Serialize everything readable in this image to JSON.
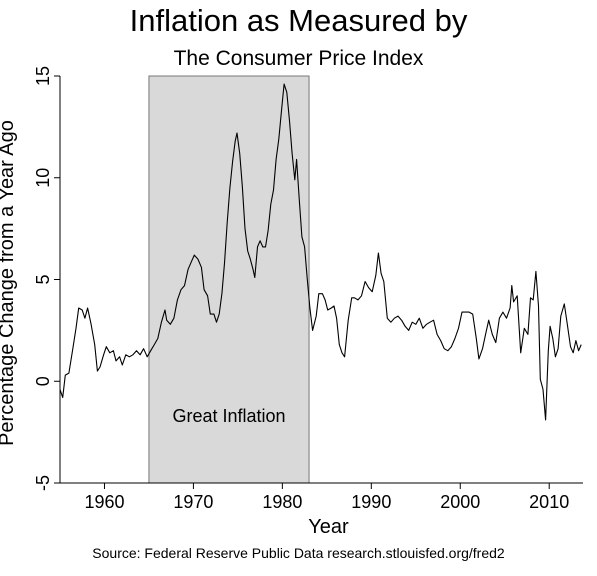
{
  "chart_data": {
    "type": "line",
    "title": "Inflation as Measured by",
    "subtitle": "The Consumer Price Index",
    "xlabel": "Year",
    "ylabel": "Percentage Change from a Year Ago",
    "xlim": [
      1955,
      2013.8
    ],
    "ylim": [
      -5,
      15
    ],
    "x_ticks": [
      1960,
      1970,
      1980,
      1990,
      2000,
      2010
    ],
    "y_ticks": [
      -5,
      0,
      5,
      10,
      15
    ],
    "grid": false,
    "shaded_regions": [
      {
        "start": 1965,
        "end": 1983,
        "label": "Great Inflation",
        "color": "#d9d9d9"
      }
    ],
    "series": [
      {
        "line_color": "#000000",
        "points": [
          [
            1955.0,
            -0.4
          ],
          [
            1955.3,
            -0.8
          ],
          [
            1955.6,
            0.3
          ],
          [
            1956.0,
            0.4
          ],
          [
            1956.4,
            1.5
          ],
          [
            1956.8,
            2.6
          ],
          [
            1957.1,
            3.6
          ],
          [
            1957.5,
            3.5
          ],
          [
            1957.8,
            3.1
          ],
          [
            1958.1,
            3.6
          ],
          [
            1958.5,
            2.8
          ],
          [
            1958.9,
            1.8
          ],
          [
            1959.2,
            0.5
          ],
          [
            1959.5,
            0.7
          ],
          [
            1959.9,
            1.3
          ],
          [
            1960.2,
            1.7
          ],
          [
            1960.6,
            1.4
          ],
          [
            1961.0,
            1.5
          ],
          [
            1961.3,
            1.0
          ],
          [
            1961.7,
            1.2
          ],
          [
            1962.0,
            0.8
          ],
          [
            1962.4,
            1.3
          ],
          [
            1962.8,
            1.2
          ],
          [
            1963.2,
            1.3
          ],
          [
            1963.6,
            1.5
          ],
          [
            1964.0,
            1.3
          ],
          [
            1964.4,
            1.6
          ],
          [
            1964.8,
            1.2
          ],
          [
            1965.2,
            1.5
          ],
          [
            1965.6,
            1.8
          ],
          [
            1966.0,
            2.1
          ],
          [
            1966.4,
            2.9
          ],
          [
            1966.8,
            3.5
          ],
          [
            1967.0,
            3.0
          ],
          [
            1967.4,
            2.8
          ],
          [
            1967.8,
            3.1
          ],
          [
            1968.2,
            4.0
          ],
          [
            1968.6,
            4.5
          ],
          [
            1969.0,
            4.7
          ],
          [
            1969.4,
            5.5
          ],
          [
            1969.8,
            5.9
          ],
          [
            1970.1,
            6.2
          ],
          [
            1970.5,
            6.0
          ],
          [
            1970.9,
            5.6
          ],
          [
            1971.2,
            4.5
          ],
          [
            1971.6,
            4.2
          ],
          [
            1971.9,
            3.3
          ],
          [
            1972.3,
            3.3
          ],
          [
            1972.6,
            2.9
          ],
          [
            1972.9,
            3.3
          ],
          [
            1973.2,
            4.3
          ],
          [
            1973.5,
            5.8
          ],
          [
            1973.8,
            7.8
          ],
          [
            1974.1,
            9.5
          ],
          [
            1974.4,
            10.8
          ],
          [
            1974.7,
            11.8
          ],
          [
            1974.9,
            12.2
          ],
          [
            1975.2,
            11.2
          ],
          [
            1975.5,
            9.6
          ],
          [
            1975.8,
            7.5
          ],
          [
            1976.1,
            6.4
          ],
          [
            1976.4,
            6.0
          ],
          [
            1976.7,
            5.5
          ],
          [
            1976.9,
            5.1
          ],
          [
            1977.2,
            6.6
          ],
          [
            1977.5,
            6.9
          ],
          [
            1977.8,
            6.6
          ],
          [
            1978.1,
            6.6
          ],
          [
            1978.4,
            7.4
          ],
          [
            1978.7,
            8.7
          ],
          [
            1979.0,
            9.4
          ],
          [
            1979.3,
            10.9
          ],
          [
            1979.6,
            11.9
          ],
          [
            1979.9,
            13.3
          ],
          [
            1980.2,
            14.6
          ],
          [
            1980.5,
            14.2
          ],
          [
            1980.8,
            12.8
          ],
          [
            1981.1,
            11.2
          ],
          [
            1981.4,
            9.9
          ],
          [
            1981.6,
            10.9
          ],
          [
            1981.9,
            8.9
          ],
          [
            1982.2,
            7.1
          ],
          [
            1982.5,
            6.6
          ],
          [
            1982.8,
            5.0
          ],
          [
            1983.1,
            3.6
          ],
          [
            1983.4,
            2.5
          ],
          [
            1983.8,
            3.2
          ],
          [
            1984.1,
            4.3
          ],
          [
            1984.5,
            4.3
          ],
          [
            1984.8,
            4.0
          ],
          [
            1985.1,
            3.5
          ],
          [
            1985.5,
            3.6
          ],
          [
            1985.8,
            3.7
          ],
          [
            1986.1,
            3.1
          ],
          [
            1986.4,
            1.8
          ],
          [
            1986.7,
            1.4
          ],
          [
            1987.0,
            1.2
          ],
          [
            1987.4,
            3.0
          ],
          [
            1987.8,
            4.1
          ],
          [
            1988.1,
            4.1
          ],
          [
            1988.5,
            4.0
          ],
          [
            1988.9,
            4.2
          ],
          [
            1989.3,
            4.9
          ],
          [
            1989.7,
            4.6
          ],
          [
            1990.1,
            4.4
          ],
          [
            1990.5,
            5.2
          ],
          [
            1990.8,
            6.3
          ],
          [
            1991.1,
            5.3
          ],
          [
            1991.4,
            4.9
          ],
          [
            1991.8,
            3.1
          ],
          [
            1992.2,
            2.9
          ],
          [
            1992.6,
            3.1
          ],
          [
            1993.0,
            3.2
          ],
          [
            1993.4,
            3.0
          ],
          [
            1993.8,
            2.7
          ],
          [
            1994.2,
            2.5
          ],
          [
            1994.6,
            2.9
          ],
          [
            1995.0,
            2.8
          ],
          [
            1995.4,
            3.1
          ],
          [
            1995.8,
            2.6
          ],
          [
            1996.2,
            2.8
          ],
          [
            1996.6,
            2.9
          ],
          [
            1997.0,
            3.0
          ],
          [
            1997.4,
            2.3
          ],
          [
            1997.8,
            2.0
          ],
          [
            1998.2,
            1.6
          ],
          [
            1998.6,
            1.5
          ],
          [
            1999.0,
            1.7
          ],
          [
            1999.4,
            2.1
          ],
          [
            1999.8,
            2.6
          ],
          [
            2000.2,
            3.4
          ],
          [
            2000.6,
            3.4
          ],
          [
            2001.0,
            3.4
          ],
          [
            2001.4,
            3.3
          ],
          [
            2001.8,
            2.1
          ],
          [
            2002.1,
            1.1
          ],
          [
            2002.5,
            1.6
          ],
          [
            2002.9,
            2.4
          ],
          [
            2003.2,
            3.0
          ],
          [
            2003.6,
            2.3
          ],
          [
            2004.0,
            1.9
          ],
          [
            2004.4,
            3.1
          ],
          [
            2004.8,
            3.4
          ],
          [
            2005.2,
            3.1
          ],
          [
            2005.6,
            3.6
          ],
          [
            2005.8,
            4.7
          ],
          [
            2006.0,
            3.9
          ],
          [
            2006.4,
            4.2
          ],
          [
            2006.8,
            1.4
          ],
          [
            2007.2,
            2.6
          ],
          [
            2007.6,
            2.3
          ],
          [
            2007.9,
            4.1
          ],
          [
            2008.2,
            4.0
          ],
          [
            2008.5,
            5.4
          ],
          [
            2008.8,
            3.7
          ],
          [
            2009.0,
            0.1
          ],
          [
            2009.3,
            -0.4
          ],
          [
            2009.6,
            -1.9
          ],
          [
            2009.9,
            1.5
          ],
          [
            2010.1,
            2.7
          ],
          [
            2010.4,
            2.1
          ],
          [
            2010.7,
            1.2
          ],
          [
            2011.0,
            1.6
          ],
          [
            2011.3,
            3.2
          ],
          [
            2011.7,
            3.8
          ],
          [
            2012.0,
            2.9
          ],
          [
            2012.4,
            1.7
          ],
          [
            2012.7,
            1.4
          ],
          [
            2013.0,
            2.0
          ],
          [
            2013.3,
            1.5
          ],
          [
            2013.6,
            1.8
          ]
        ]
      }
    ]
  },
  "source_text": "Source: Federal Reserve Public Data research.stlouisfed.org/fred2"
}
